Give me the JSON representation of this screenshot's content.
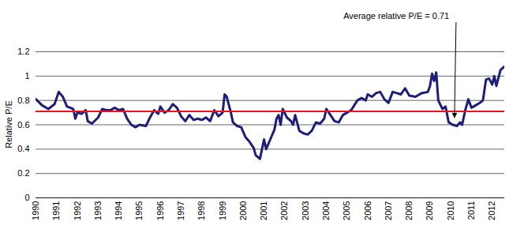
{
  "chart_data": {
    "type": "line",
    "y_label": "Relative P/E",
    "color": "#1c1e78",
    "line_style": "solid",
    "grid": true,
    "xlim": [
      1990,
      2012.6
    ],
    "xticks": [
      1990,
      1991,
      1992,
      1993,
      1994,
      1995,
      1996,
      1997,
      1998,
      1999,
      2000,
      2001,
      2002,
      2003,
      2004,
      2005,
      2006,
      2007,
      2008,
      2009,
      2010,
      2011,
      2012
    ],
    "ylim": [
      0,
      1.2
    ],
    "yticks": [
      0,
      0.2,
      0.4,
      0.6,
      0.8,
      1,
      1.2
    ],
    "average": {
      "value": 0.71,
      "color": "#e8141b"
    },
    "annotations": [
      {
        "text": "Average relative P/E = 0.71",
        "x": 2010.2,
        "y": 0.63
      }
    ],
    "x": [
      1990.0,
      1990.3,
      1990.6,
      1990.9,
      1991.1,
      1991.3,
      1991.5,
      1991.8,
      1991.9,
      1992.0,
      1992.2,
      1992.4,
      1992.5,
      1992.7,
      1993.0,
      1993.2,
      1993.4,
      1993.6,
      1993.8,
      1994.0,
      1994.2,
      1994.4,
      1994.6,
      1994.8,
      1995.0,
      1995.3,
      1995.5,
      1995.7,
      1995.9,
      1996.0,
      1996.2,
      1996.4,
      1996.6,
      1996.8,
      1997.0,
      1997.2,
      1997.4,
      1997.6,
      1997.8,
      1998.0,
      1998.2,
      1998.4,
      1998.6,
      1998.8,
      1999.0,
      1999.1,
      1999.2,
      1999.4,
      1999.5,
      1999.7,
      1999.9,
      2000.1,
      2000.3,
      2000.5,
      2000.6,
      2000.8,
      2000.9,
      2001.0,
      2001.1,
      2001.3,
      2001.5,
      2001.6,
      2001.7,
      2001.8,
      2001.9,
      2002.1,
      2002.3,
      2002.4,
      2002.5,
      2002.7,
      2002.9,
      2003.1,
      2003.3,
      2003.5,
      2003.7,
      2003.9,
      2004.0,
      2004.2,
      2004.4,
      2004.6,
      2004.8,
      2005.0,
      2005.2,
      2005.5,
      2005.7,
      2005.9,
      2006.0,
      2006.2,
      2006.4,
      2006.6,
      2006.8,
      2007.0,
      2007.2,
      2007.4,
      2007.6,
      2007.8,
      2008.0,
      2008.3,
      2008.6,
      2008.9,
      2009.0,
      2009.1,
      2009.2,
      2009.3,
      2009.4,
      2009.6,
      2009.75,
      2009.9,
      2010.1,
      2010.3,
      2010.45,
      2010.55,
      2010.7,
      2010.85,
      2011.0,
      2011.2,
      2011.4,
      2011.55,
      2011.7,
      2011.85,
      2012.0,
      2012.1,
      2012.2,
      2012.4,
      2012.6
    ],
    "values": [
      0.81,
      0.76,
      0.73,
      0.77,
      0.87,
      0.83,
      0.75,
      0.73,
      0.65,
      0.7,
      0.69,
      0.72,
      0.63,
      0.61,
      0.66,
      0.73,
      0.72,
      0.72,
      0.74,
      0.72,
      0.73,
      0.65,
      0.6,
      0.58,
      0.6,
      0.59,
      0.66,
      0.72,
      0.69,
      0.75,
      0.7,
      0.72,
      0.77,
      0.74,
      0.67,
      0.63,
      0.68,
      0.64,
      0.65,
      0.64,
      0.66,
      0.63,
      0.72,
      0.67,
      0.7,
      0.85,
      0.83,
      0.7,
      0.62,
      0.59,
      0.58,
      0.5,
      0.46,
      0.41,
      0.35,
      0.32,
      0.4,
      0.48,
      0.4,
      0.48,
      0.56,
      0.65,
      0.68,
      0.6,
      0.73,
      0.66,
      0.63,
      0.6,
      0.68,
      0.55,
      0.53,
      0.52,
      0.55,
      0.62,
      0.61,
      0.65,
      0.73,
      0.68,
      0.63,
      0.62,
      0.68,
      0.7,
      0.72,
      0.8,
      0.82,
      0.8,
      0.85,
      0.83,
      0.86,
      0.87,
      0.81,
      0.78,
      0.87,
      0.86,
      0.85,
      0.9,
      0.84,
      0.83,
      0.86,
      0.87,
      0.92,
      1.02,
      0.96,
      1.03,
      0.8,
      0.73,
      0.75,
      0.62,
      0.6,
      0.59,
      0.62,
      0.6,
      0.72,
      0.81,
      0.74,
      0.76,
      0.78,
      0.8,
      0.97,
      0.98,
      0.93,
      1.0,
      0.92,
      1.05,
      1.08
    ]
  }
}
